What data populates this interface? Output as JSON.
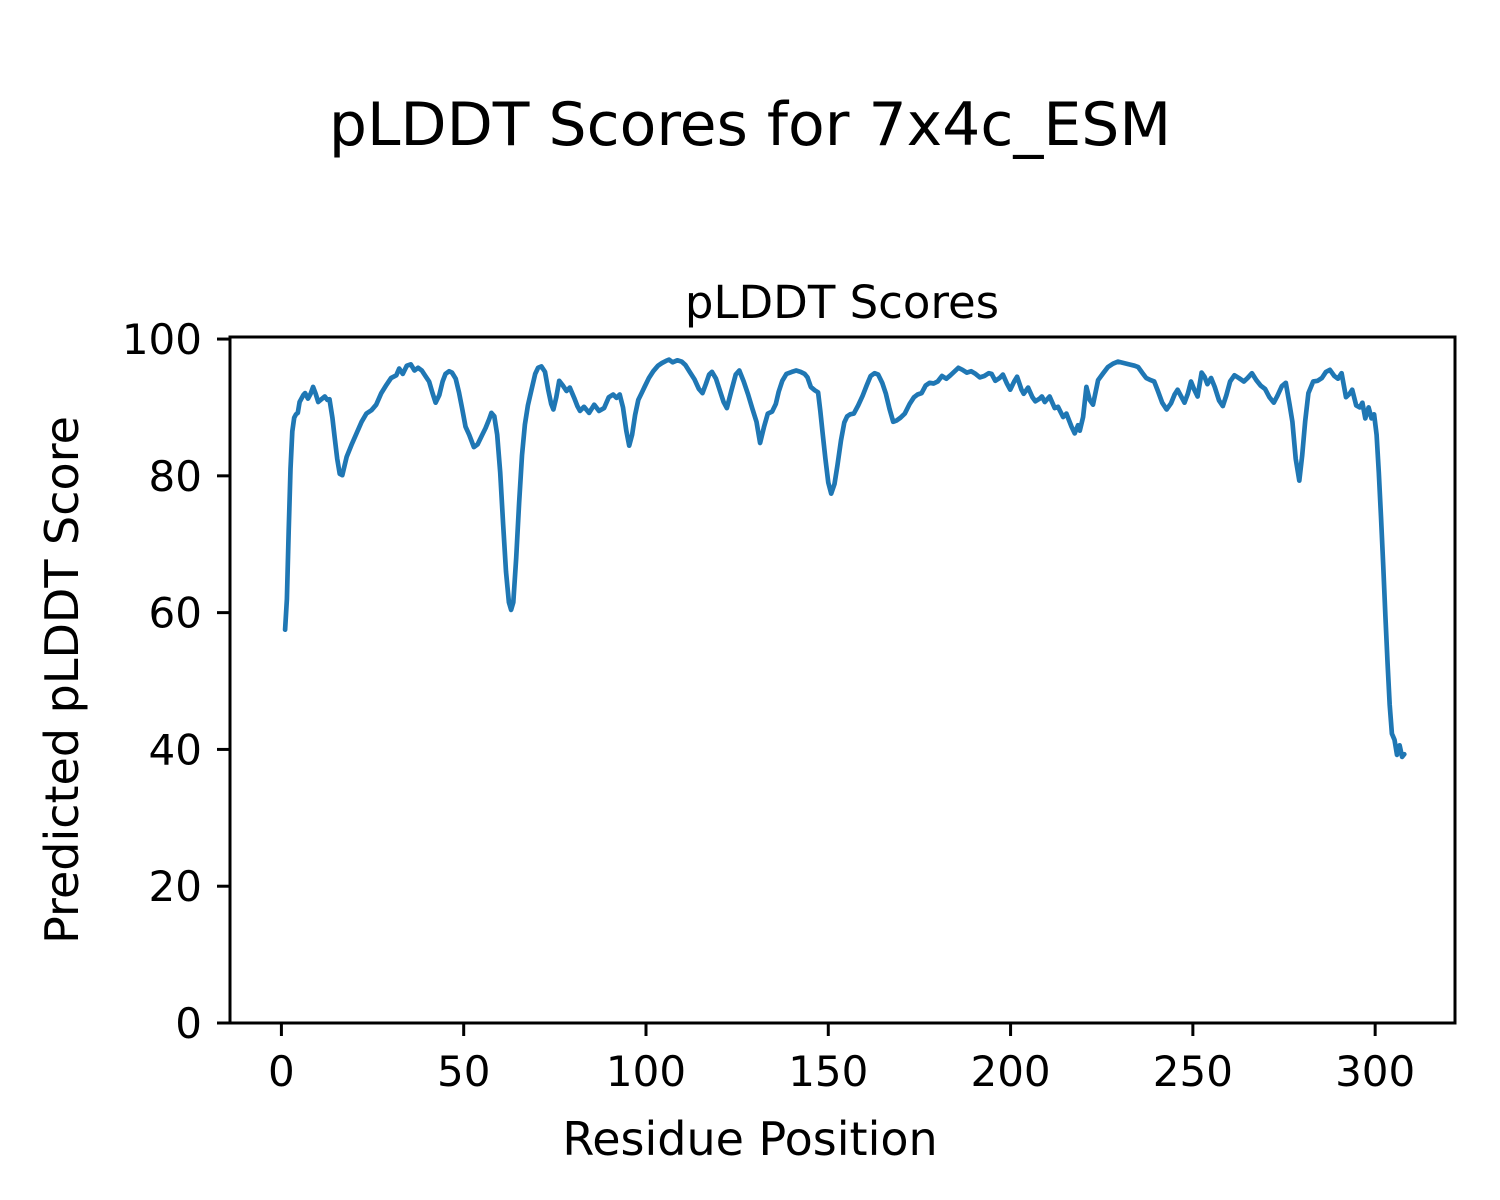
{
  "figure": {
    "suptitle": "pLDDT Scores for 7x4c_ESM"
  },
  "chart_data": {
    "type": "line",
    "title": "pLDDT Scores",
    "xlabel": "Residue Position",
    "ylabel": "Predicted pLDDT Score",
    "legend": null,
    "grid": false,
    "x_ticks": [
      0,
      50,
      100,
      150,
      200,
      250,
      300
    ],
    "y_ticks": [
      0,
      20,
      40,
      60,
      80,
      100
    ],
    "xlim": [
      -14.1,
      321.9
    ],
    "ylim": [
      0,
      100.3
    ],
    "line_color": "#1f77b4",
    "series": [
      {
        "name": "pLDDT",
        "points": [
          [
            1,
            57.5
          ],
          [
            1.5,
            62
          ],
          [
            2,
            72
          ],
          [
            2.5,
            81
          ],
          [
            3,
            86.5
          ],
          [
            3.5,
            88.5
          ],
          [
            4,
            89
          ],
          [
            4.5,
            89.2
          ],
          [
            5,
            90.8
          ],
          [
            6,
            91.8
          ],
          [
            6.5,
            92.1
          ],
          [
            7.3,
            91.3
          ],
          [
            8,
            92
          ],
          [
            8.7,
            93
          ],
          [
            9.4,
            92
          ],
          [
            10.1,
            90.8
          ],
          [
            11,
            91.2
          ],
          [
            11.9,
            91.6
          ],
          [
            12.6,
            91.1
          ],
          [
            13.2,
            91.2
          ],
          [
            14,
            88.5
          ],
          [
            14.6,
            85.7
          ],
          [
            15.3,
            82.5
          ],
          [
            16,
            80.3
          ],
          [
            16.7,
            80.1
          ],
          [
            17.9,
            82.8
          ],
          [
            19.2,
            84.5
          ],
          [
            20.6,
            86.2
          ],
          [
            22,
            87.9
          ],
          [
            23.3,
            89.1
          ],
          [
            24.7,
            89.6
          ],
          [
            26,
            90.4
          ],
          [
            27.4,
            92.1
          ],
          [
            28.8,
            93.3
          ],
          [
            30.1,
            94.3
          ],
          [
            31.5,
            94.7
          ],
          [
            32.3,
            95.7
          ],
          [
            33.3,
            94.9
          ],
          [
            34.4,
            96.1
          ],
          [
            35.5,
            96.3
          ],
          [
            36.5,
            95.4
          ],
          [
            37.5,
            95.8
          ],
          [
            38.5,
            95.4
          ],
          [
            39.5,
            94.6
          ],
          [
            40.5,
            93.8
          ],
          [
            41.4,
            92.2
          ],
          [
            42.3,
            90.7
          ],
          [
            43.3,
            91.8
          ],
          [
            44.2,
            93.8
          ],
          [
            45,
            94.9
          ],
          [
            46,
            95.3
          ],
          [
            46.8,
            95.1
          ],
          [
            47.8,
            94.2
          ],
          [
            48.7,
            92.2
          ],
          [
            49.6,
            89.8
          ],
          [
            50.5,
            87.2
          ],
          [
            51.5,
            86
          ],
          [
            52.8,
            84.2
          ],
          [
            53.8,
            84.6
          ],
          [
            55,
            85.9
          ],
          [
            56,
            87
          ],
          [
            57,
            88.3
          ],
          [
            57.6,
            89.2
          ],
          [
            58.4,
            88.7
          ],
          [
            59.2,
            86
          ],
          [
            60,
            80.5
          ],
          [
            60.8,
            73
          ],
          [
            61.6,
            66
          ],
          [
            62.4,
            61.5
          ],
          [
            63,
            60.4
          ],
          [
            63.6,
            61.5
          ],
          [
            64.4,
            68
          ],
          [
            65.2,
            76
          ],
          [
            66,
            83
          ],
          [
            66.8,
            87.5
          ],
          [
            67.6,
            90.3
          ],
          [
            68.6,
            92.6
          ],
          [
            69.6,
            94.9
          ],
          [
            70.4,
            95.8
          ],
          [
            71.3,
            96
          ],
          [
            72.3,
            95.2
          ],
          [
            73.2,
            92.5
          ],
          [
            74,
            90.5
          ],
          [
            74.6,
            89.7
          ],
          [
            75.4,
            91.5
          ],
          [
            76.2,
            93.9
          ],
          [
            77.2,
            93.2
          ],
          [
            78.2,
            92.4
          ],
          [
            79.1,
            92.9
          ],
          [
            80.3,
            91.4
          ],
          [
            81.2,
            90.2
          ],
          [
            81.9,
            89.5
          ],
          [
            83,
            90.1
          ],
          [
            84.4,
            89.2
          ],
          [
            85.8,
            90.4
          ],
          [
            87.1,
            89.5
          ],
          [
            88.5,
            89.9
          ],
          [
            89.8,
            91.5
          ],
          [
            91,
            91.9
          ],
          [
            91.9,
            91.4
          ],
          [
            92.8,
            91.9
          ],
          [
            93.7,
            90
          ],
          [
            94.6,
            86.6
          ],
          [
            95.4,
            84.4
          ],
          [
            96.2,
            86
          ],
          [
            97,
            88.9
          ],
          [
            97.9,
            91.1
          ],
          [
            98.8,
            92.1
          ],
          [
            99.7,
            93.1
          ],
          [
            100.8,
            94.3
          ],
          [
            102,
            95.3
          ],
          [
            103.3,
            96.1
          ],
          [
            104.4,
            96.5
          ],
          [
            105.5,
            96.8
          ],
          [
            106.3,
            97
          ],
          [
            107.3,
            96.6
          ],
          [
            108.6,
            96.9
          ],
          [
            109.8,
            96.7
          ],
          [
            110.8,
            96.2
          ],
          [
            112,
            95.2
          ],
          [
            113.3,
            94.1
          ],
          [
            114.5,
            92.7
          ],
          [
            115.5,
            92.1
          ],
          [
            116.4,
            93.4
          ],
          [
            117.3,
            94.8
          ],
          [
            118.1,
            95.2
          ],
          [
            119.2,
            94.2
          ],
          [
            120.3,
            92.4
          ],
          [
            121.3,
            90.8
          ],
          [
            122.2,
            89.9
          ],
          [
            123.4,
            92.4
          ],
          [
            124.6,
            94.8
          ],
          [
            125.6,
            95.4
          ],
          [
            126.8,
            93.8
          ],
          [
            128,
            91.9
          ],
          [
            129.2,
            89.8
          ],
          [
            130.3,
            87.9
          ],
          [
            131.3,
            84.8
          ],
          [
            132.4,
            87.2
          ],
          [
            133.4,
            89.1
          ],
          [
            134.6,
            89.4
          ],
          [
            135.6,
            90.5
          ],
          [
            136.4,
            92.3
          ],
          [
            137.4,
            93.9
          ],
          [
            138.5,
            94.9
          ],
          [
            140,
            95.2
          ],
          [
            141.2,
            95.4
          ],
          [
            142.4,
            95.2
          ],
          [
            143.5,
            94.9
          ],
          [
            144.3,
            94.4
          ],
          [
            145.2,
            93
          ],
          [
            146.3,
            92.5
          ],
          [
            147.2,
            92.2
          ],
          [
            147.8,
            89.5
          ],
          [
            148.5,
            86
          ],
          [
            149.2,
            82.5
          ],
          [
            150,
            79
          ],
          [
            150.8,
            77.4
          ],
          [
            151.7,
            78.8
          ],
          [
            152.5,
            81.5
          ],
          [
            153.5,
            85.2
          ],
          [
            154.4,
            87.8
          ],
          [
            155.2,
            88.7
          ],
          [
            156,
            89
          ],
          [
            157,
            89.1
          ],
          [
            158.2,
            90.3
          ],
          [
            159.4,
            91.7
          ],
          [
            160.5,
            93.2
          ],
          [
            161.6,
            94.6
          ],
          [
            162.7,
            95
          ],
          [
            163.7,
            94.8
          ],
          [
            164.8,
            93.6
          ],
          [
            165.8,
            92
          ],
          [
            166.8,
            89.8
          ],
          [
            167.8,
            87.9
          ],
          [
            168.8,
            88.1
          ],
          [
            169.8,
            88.5
          ],
          [
            171,
            89.1
          ],
          [
            172.3,
            90.5
          ],
          [
            173.5,
            91.5
          ],
          [
            174.5,
            91.9
          ],
          [
            175.6,
            92.1
          ],
          [
            176.7,
            93.2
          ],
          [
            177.8,
            93.6
          ],
          [
            178.9,
            93.5
          ],
          [
            180,
            93.8
          ],
          [
            181.2,
            94.6
          ],
          [
            182.4,
            94.2
          ],
          [
            183.5,
            94.7
          ],
          [
            184.7,
            95.3
          ],
          [
            185.7,
            95.8
          ],
          [
            186.8,
            95.5
          ],
          [
            188,
            95.1
          ],
          [
            189.2,
            95.3
          ],
          [
            190.4,
            94.9
          ],
          [
            191.6,
            94.4
          ],
          [
            192.8,
            94.6
          ],
          [
            194,
            95
          ],
          [
            194.8,
            94.9
          ],
          [
            195.8,
            93.9
          ],
          [
            197,
            94.3
          ],
          [
            197.9,
            94.8
          ],
          [
            199,
            93.5
          ],
          [
            199.9,
            92.6
          ],
          [
            201,
            93.8
          ],
          [
            201.8,
            94.5
          ],
          [
            203,
            92.6
          ],
          [
            203.6,
            92
          ],
          [
            204.8,
            92.9
          ],
          [
            206,
            91.5
          ],
          [
            206.8,
            90.9
          ],
          [
            208,
            91.3
          ],
          [
            208.6,
            91.6
          ],
          [
            209.4,
            90.8
          ],
          [
            210.7,
            91.6
          ],
          [
            212.1,
            89.9
          ],
          [
            213,
            90.1
          ],
          [
            214.4,
            88.6
          ],
          [
            215.3,
            89.1
          ],
          [
            216.7,
            87.2
          ],
          [
            217.6,
            86.2
          ],
          [
            218.5,
            87.4
          ],
          [
            219,
            86.6
          ],
          [
            219.9,
            88.6
          ],
          [
            220.8,
            93
          ],
          [
            221.7,
            91.1
          ],
          [
            222.6,
            90.4
          ],
          [
            224,
            94
          ],
          [
            225.4,
            95
          ],
          [
            226.7,
            95.9
          ],
          [
            228.1,
            96.4
          ],
          [
            229.5,
            96.7
          ],
          [
            231,
            96.5
          ],
          [
            232.5,
            96.3
          ],
          [
            234,
            96.1
          ],
          [
            235,
            95.9
          ],
          [
            236.2,
            95
          ],
          [
            237.2,
            94.3
          ],
          [
            238.4,
            94
          ],
          [
            239.4,
            93.8
          ],
          [
            240.4,
            92.4
          ],
          [
            241.6,
            90.7
          ],
          [
            242.8,
            89.7
          ],
          [
            244,
            90.6
          ],
          [
            245,
            91.9
          ],
          [
            245.8,
            92.6
          ],
          [
            246.8,
            91.6
          ],
          [
            247.7,
            90.7
          ],
          [
            248.6,
            92
          ],
          [
            249.5,
            93.8
          ],
          [
            250.4,
            92.6
          ],
          [
            251.3,
            91.6
          ],
          [
            252.4,
            95.1
          ],
          [
            253.2,
            94.5
          ],
          [
            254,
            93.4
          ],
          [
            255,
            94.3
          ],
          [
            256,
            93
          ],
          [
            257.2,
            91
          ],
          [
            258.2,
            90.2
          ],
          [
            259.2,
            91.8
          ],
          [
            260.2,
            93.8
          ],
          [
            261.4,
            94.7
          ],
          [
            262.6,
            94.3
          ],
          [
            264,
            93.8
          ],
          [
            265,
            94.3
          ],
          [
            266.2,
            95
          ],
          [
            267.4,
            94
          ],
          [
            268.6,
            93.2
          ],
          [
            269.8,
            92.7
          ],
          [
            271,
            91.5
          ],
          [
            272.2,
            90.7
          ],
          [
            273.2,
            91.7
          ],
          [
            274.4,
            93.1
          ],
          [
            275.5,
            93.6
          ],
          [
            276.5,
            90.5
          ],
          [
            277.3,
            87.9
          ],
          [
            278.2,
            82.5
          ],
          [
            279.2,
            79.3
          ],
          [
            280,
            83
          ],
          [
            280.8,
            88
          ],
          [
            281.7,
            92.1
          ],
          [
            283,
            93.8
          ],
          [
            284.2,
            93.9
          ],
          [
            285.4,
            94.3
          ],
          [
            286.5,
            95.2
          ],
          [
            287.6,
            95.5
          ],
          [
            288.8,
            94.6
          ],
          [
            289.8,
            94.2
          ],
          [
            290.8,
            95
          ],
          [
            292,
            91.5
          ],
          [
            293,
            92
          ],
          [
            293.7,
            92.6
          ],
          [
            294.8,
            90.3
          ],
          [
            295.8,
            90
          ],
          [
            296.5,
            90.7
          ],
          [
            297.3,
            88.4
          ],
          [
            298.2,
            90
          ],
          [
            299,
            88.4
          ],
          [
            299.7,
            89
          ],
          [
            300.4,
            86
          ],
          [
            301,
            80.5
          ],
          [
            301.6,
            74
          ],
          [
            302.2,
            67
          ],
          [
            302.8,
            59.5
          ],
          [
            303.4,
            52.5
          ],
          [
            304,
            46.5
          ],
          [
            304.6,
            42.3
          ],
          [
            305.3,
            41.4
          ],
          [
            306,
            39.2
          ],
          [
            306.7,
            40.6
          ],
          [
            307.4,
            38.9
          ],
          [
            308,
            39.3
          ]
        ]
      }
    ]
  }
}
